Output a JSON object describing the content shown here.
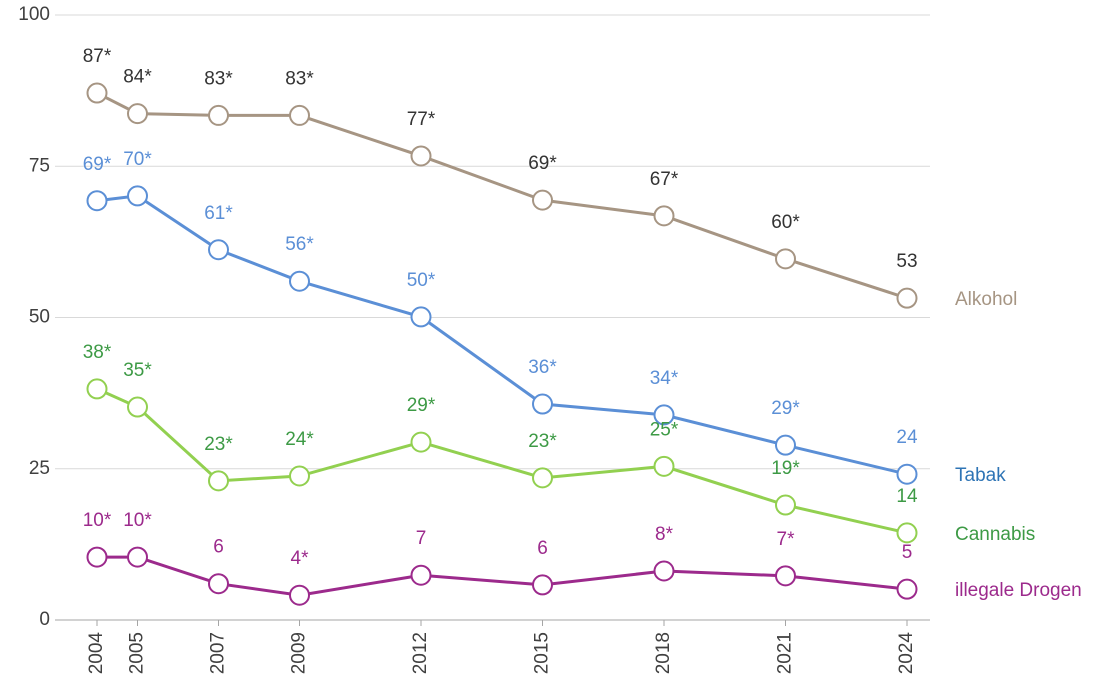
{
  "chart_data": {
    "type": "line",
    "x": [
      2004,
      2005,
      2007,
      2009,
      2012,
      2015,
      2018,
      2021,
      2024
    ],
    "xlim": [
      2004,
      2024
    ],
    "ylim": [
      0,
      100
    ],
    "yticks": [
      0,
      25,
      50,
      75,
      100
    ],
    "grid": true,
    "series": [
      {
        "name": "Alkohol",
        "color": "#a69583",
        "label_color": "#333333",
        "values": [
          87.1,
          83.7,
          83.4,
          83.4,
          76.7,
          69.4,
          66.8,
          59.7,
          53.2
        ],
        "value_labels": [
          "87*",
          "84*",
          "83*",
          "83*",
          "77*",
          "69*",
          "67*",
          "60*",
          "53"
        ]
      },
      {
        "name": "Tabak",
        "color": "#5b8fd6",
        "label_color": "#5b8fd6",
        "name_color": "#2e74b5",
        "values": [
          69.3,
          70.1,
          61.2,
          56.0,
          50.1,
          35.7,
          33.9,
          28.9,
          24.1
        ],
        "value_labels": [
          "69*",
          "70*",
          "61*",
          "56*",
          "50*",
          "36*",
          "34*",
          "29*",
          "24"
        ]
      },
      {
        "name": "Cannabis",
        "color": "#92d050",
        "label_color": "#3d9a45",
        "values": [
          38.2,
          35.2,
          23.0,
          23.8,
          29.4,
          23.5,
          25.4,
          19.0,
          14.4
        ],
        "value_labels": [
          "38*",
          "35*",
          "23*",
          "24*",
          "29*",
          "23*",
          "25*",
          "19*",
          "14"
        ]
      },
      {
        "name": "illegale Drogen",
        "color": "#9c2a8c",
        "label_color": "#9c2a8c",
        "values": [
          10.4,
          10.4,
          6.0,
          4.1,
          7.4,
          5.8,
          8.1,
          7.3,
          5.1
        ],
        "value_labels": [
          "10*",
          "10*",
          "6",
          "4*",
          "7",
          "6",
          "8*",
          "7*",
          "5"
        ]
      }
    ]
  }
}
